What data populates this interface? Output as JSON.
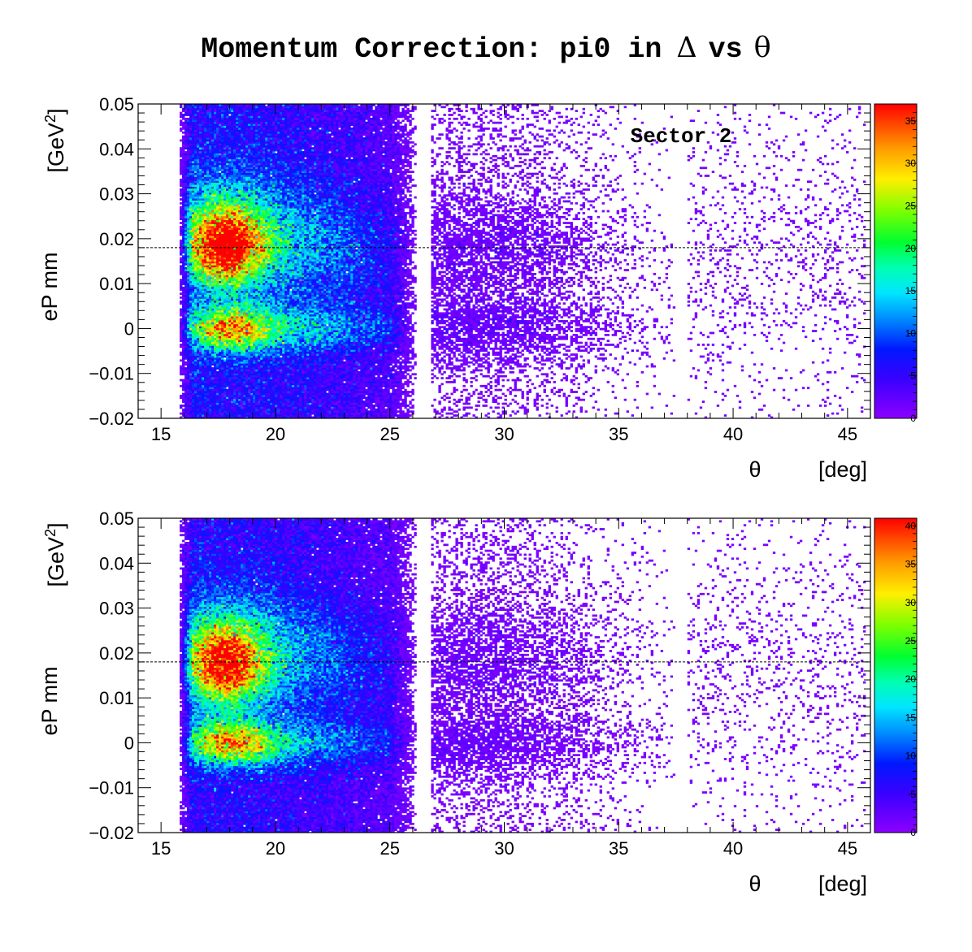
{
  "figure": {
    "title_prefix": "Momentum Correction: pi0 in",
    "title_delta": "Δ",
    "title_vs": "vs",
    "title_theta": "θ"
  },
  "chart_data": [
    {
      "type": "heatmap",
      "annotation": "Sector 2",
      "xlabel_symbol": "θ",
      "xlabel_unit": "[deg]",
      "ylabel_main": "eP mm",
      "ylabel_unit_open": "[GeV",
      "ylabel_unit_exp": "2",
      "ylabel_unit_close": "]",
      "xlim": [
        14,
        46
      ],
      "ylim": [
        -0.02,
        0.05
      ],
      "xticks": [
        15,
        20,
        25,
        30,
        35,
        40,
        45
      ],
      "xtick_labels": [
        "15",
        "20",
        "25",
        "30",
        "35",
        "40",
        "45"
      ],
      "yticks": [
        -0.02,
        -0.01,
        0,
        0.01,
        0.02,
        0.03,
        0.04,
        0.05
      ],
      "ytick_labels": [
        "−0.02",
        "−0.01",
        "0",
        "0.01",
        "0.02",
        "0.03",
        "0.04",
        "0.05"
      ],
      "colorbar_range": [
        0,
        37
      ],
      "colorbar_ticks": [
        0,
        5,
        10,
        15,
        20,
        25,
        30,
        35
      ],
      "colorbar_tick_labels": [
        "0",
        "5",
        "10",
        "15",
        "20",
        "25",
        "30",
        "35"
      ],
      "reference_line_y": 0.018,
      "regions": [
        {
          "theta_range": [
            15.8,
            26.2
          ],
          "description_level": "dense"
        },
        {
          "theta_range": [
            26.8,
            37.5
          ],
          "description_level": "sparse"
        },
        {
          "theta_range": [
            38.0,
            45.8
          ],
          "description_level": "very sparse"
        }
      ],
      "peaks": [
        {
          "theta": 17.8,
          "y": 0.0185,
          "value": 30
        },
        {
          "theta": 18.0,
          "y": 0.0,
          "value": 21
        }
      ]
    },
    {
      "type": "heatmap",
      "xlabel_symbol": "θ",
      "xlabel_unit": "[deg]",
      "ylabel_main": "eP mm",
      "ylabel_unit_open": "[GeV",
      "ylabel_unit_exp": "2",
      "ylabel_unit_close": "]",
      "xlim": [
        14,
        46
      ],
      "ylim": [
        -0.02,
        0.05
      ],
      "xticks": [
        15,
        20,
        25,
        30,
        35,
        40,
        45
      ],
      "xtick_labels": [
        "15",
        "20",
        "25",
        "30",
        "35",
        "40",
        "45"
      ],
      "yticks": [
        -0.02,
        -0.01,
        0,
        0.01,
        0.02,
        0.03,
        0.04,
        0.05
      ],
      "ytick_labels": [
        "−0.02",
        "−0.01",
        "0",
        "0.01",
        "0.02",
        "0.03",
        "0.04",
        "0.05"
      ],
      "colorbar_range": [
        0,
        41
      ],
      "colorbar_ticks": [
        0,
        5,
        10,
        15,
        20,
        25,
        30,
        35,
        40
      ],
      "colorbar_tick_labels": [
        "0",
        "5",
        "10",
        "15",
        "20",
        "25",
        "30",
        "35",
        "40"
      ],
      "reference_line_y": 0.018,
      "regions": [
        {
          "theta_range": [
            15.8,
            26.2
          ],
          "description_level": "dense"
        },
        {
          "theta_range": [
            26.8,
            37.5
          ],
          "description_level": "sparse"
        },
        {
          "theta_range": [
            38.0,
            45.8
          ],
          "description_level": "very sparse"
        }
      ],
      "peaks": [
        {
          "theta": 17.8,
          "y": 0.0175,
          "value": 33
        },
        {
          "theta": 18.0,
          "y": 0.0,
          "value": 25
        }
      ]
    }
  ]
}
